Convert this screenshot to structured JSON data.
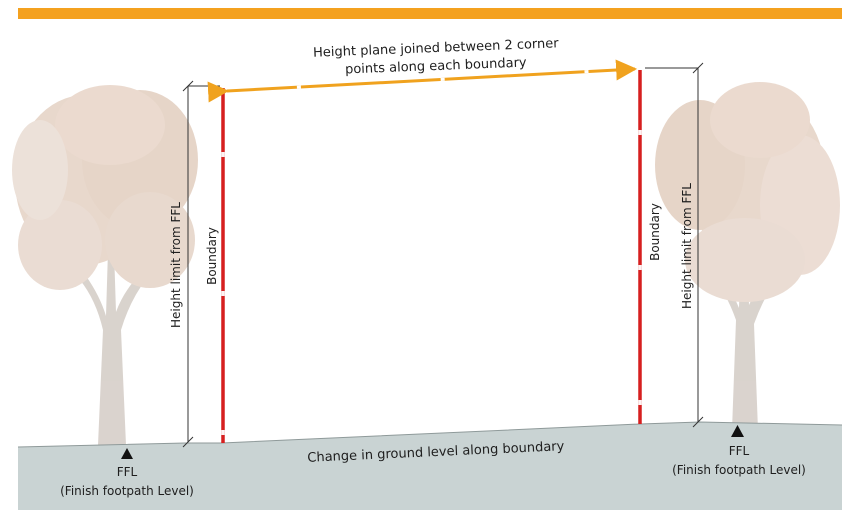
{
  "diagram": {
    "top_label_line1": "Height plane joined between 2 corner",
    "top_label_line2": "points along each boundary",
    "left_height_label": "Height limit from FFL",
    "right_height_label": "Height limit from FFL",
    "left_boundary_label": "Boundary",
    "right_boundary_label": "Boundary",
    "ground_label": "Change in ground level along boundary",
    "left_ffl_label": "FFL",
    "left_ffl_desc": "(Finish footpath Level)",
    "right_ffl_label": "FFL",
    "right_ffl_desc": "(Finish footpath Level)"
  },
  "colors": {
    "top_band": "#f4a11f",
    "height_plane_arrow": "#f0a21e",
    "boundary_line": "#d61f1f",
    "ground": "#c9d3d3",
    "tree_foliage": "#e5d3c6",
    "tree_trunk": "#d8d1cb"
  },
  "icons": {
    "ffl_marker": "triangle-marker-icon",
    "tree": "tree-icon"
  }
}
